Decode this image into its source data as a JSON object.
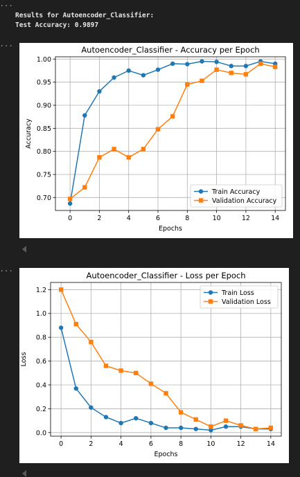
{
  "cells": {
    "output_marker": "...",
    "results_line": "Results for Autoencoder_Classifier:",
    "accuracy_line": "Test Accuracy: 0.9897"
  },
  "chart_data": [
    {
      "type": "line",
      "title": "Autoencoder_Classifier - Accuracy per Epoch",
      "xlabel": "Epochs",
      "ylabel": "Accuracy",
      "xlim": [
        -1,
        14.7
      ],
      "ylim": [
        0.672,
        1.005
      ],
      "xticks": [
        0,
        2,
        4,
        6,
        8,
        10,
        12,
        14
      ],
      "yticks": [
        0.7,
        0.75,
        0.8,
        0.85,
        0.9,
        0.95,
        1.0
      ],
      "ytick_decimals": 2,
      "grid": true,
      "legend_position": "lower-right",
      "x": [
        0,
        1,
        2,
        3,
        4,
        5,
        6,
        7,
        8,
        9,
        10,
        11,
        12,
        13,
        14
      ],
      "series": [
        {
          "name": "Train Accuracy",
          "color": "#1f77b4",
          "marker": "circle",
          "values": [
            0.687,
            0.878,
            0.93,
            0.96,
            0.975,
            0.965,
            0.977,
            0.99,
            0.989,
            0.995,
            0.994,
            0.985,
            0.985,
            0.995,
            0.99
          ]
        },
        {
          "name": "Validation Accuracy",
          "color": "#ff7f0e",
          "marker": "square",
          "values": [
            0.697,
            0.722,
            0.787,
            0.805,
            0.787,
            0.805,
            0.848,
            0.876,
            0.945,
            0.953,
            0.977,
            0.97,
            0.967,
            0.99,
            0.983
          ]
        }
      ]
    },
    {
      "type": "line",
      "title": "Autoencoder_Classifier - Loss per Epoch",
      "xlabel": "Epochs",
      "ylabel": "Loss",
      "xlim": [
        -0.7,
        14.7
      ],
      "ylim": [
        -0.03,
        1.26
      ],
      "xticks": [
        0,
        2,
        4,
        6,
        8,
        10,
        12,
        14
      ],
      "yticks": [
        0.0,
        0.2,
        0.4,
        0.6,
        0.8,
        1.0,
        1.2
      ],
      "ytick_decimals": 1,
      "grid": true,
      "legend_position": "top-right",
      "x": [
        0,
        1,
        2,
        3,
        4,
        5,
        6,
        7,
        8,
        9,
        10,
        11,
        12,
        13,
        14
      ],
      "series": [
        {
          "name": "Train Loss",
          "color": "#1f77b4",
          "marker": "circle",
          "values": [
            0.88,
            0.37,
            0.21,
            0.13,
            0.08,
            0.12,
            0.08,
            0.04,
            0.04,
            0.03,
            0.02,
            0.05,
            0.05,
            0.03,
            0.03
          ]
        },
        {
          "name": "Validation Loss",
          "color": "#ff7f0e",
          "marker": "square",
          "values": [
            1.2,
            0.91,
            0.76,
            0.56,
            0.52,
            0.5,
            0.41,
            0.33,
            0.17,
            0.11,
            0.05,
            0.1,
            0.06,
            0.03,
            0.04
          ]
        }
      ]
    }
  ]
}
